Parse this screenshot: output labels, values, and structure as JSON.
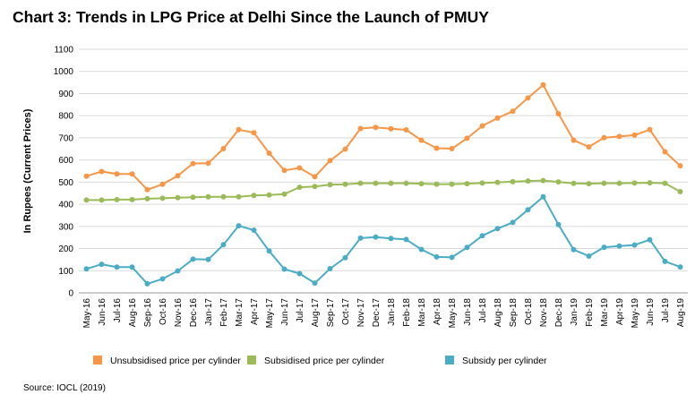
{
  "chart_data": {
    "type": "line",
    "title": "Chart 3: Trends in LPG Price at Delhi Since the Launch of PMUY",
    "xlabel": "",
    "ylabel": "In Rupees (Current Prices)",
    "ylim": [
      0,
      1100
    ],
    "yticks": [
      0,
      100,
      200,
      300,
      400,
      500,
      600,
      700,
      800,
      900,
      1000,
      1100
    ],
    "grid": true,
    "legend_position": "bottom",
    "categories": [
      "May-16",
      "Jun-16",
      "Jul-16",
      "Aug-16",
      "Sep-16",
      "Oct-16",
      "Nov-16",
      "Dec-16",
      "Jan-17",
      "Feb-17",
      "Mar-17",
      "Apr-17",
      "May-17",
      "Jun-17",
      "Jul-17",
      "Aug-17",
      "Sep-17",
      "Oct-17",
      "Nov-17",
      "Dec-17",
      "Jan-18",
      "Feb-18",
      "Mar-18",
      "Apr-18",
      "May-18",
      "Jun-18",
      "Jul-18",
      "Aug-18",
      "Sep-18",
      "Oct-18",
      "Nov-18",
      "Dec-18",
      "Jan-19",
      "Feb-19",
      "Mar-19",
      "Apr-19",
      "May-19",
      "Jun-19",
      "Jul-19",
      "Aug-19"
    ],
    "series": [
      {
        "name": "Unsubsidised price per cylinder",
        "color": "#F79646",
        "values": [
          527,
          548,
          537,
          537,
          466,
          490,
          529,
          584,
          585,
          651,
          737,
          723,
          631,
          553,
          564,
          524,
          597,
          649,
          742,
          747,
          741,
          736,
          689,
          653,
          651,
          698,
          754,
          789,
          820,
          880,
          939,
          809,
          689,
          659,
          701,
          706,
          712,
          737,
          637,
          574
        ]
      },
      {
        "name": "Subsidised price per cylinder",
        "color": "#9BBB59",
        "values": [
          419,
          419,
          421,
          421,
          425,
          427,
          430,
          432,
          434,
          434,
          434,
          440,
          442,
          446,
          477,
          480,
          488,
          490,
          495,
          495,
          495,
          495,
          493,
          491,
          491,
          493,
          496,
          499,
          502,
          505,
          507,
          501,
          494,
          493,
          495,
          495,
          496,
          497,
          495,
          457
        ]
      },
      {
        "name": "Subsidy per cylinder",
        "color": "#4BACC6",
        "values": [
          108,
          129,
          116,
          116,
          41,
          63,
          99,
          152,
          151,
          217,
          303,
          283,
          189,
          107,
          87,
          44,
          109,
          159,
          247,
          252,
          246,
          241,
          196,
          162,
          160,
          205,
          258,
          290,
          318,
          375,
          434,
          308,
          195,
          166,
          206,
          211,
          216,
          240,
          142,
          117
        ]
      }
    ]
  },
  "source": "Source: IOCL (2019)"
}
